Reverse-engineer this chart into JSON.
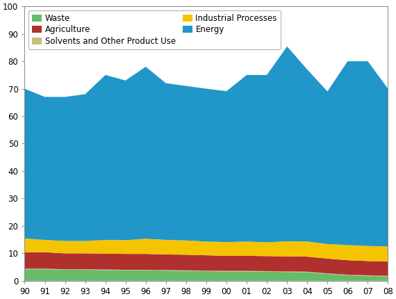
{
  "years": [
    1990,
    1991,
    1992,
    1993,
    1994,
    1995,
    1996,
    1997,
    1998,
    1999,
    2000,
    2001,
    2002,
    2003,
    2004,
    2005,
    2006,
    2007,
    2008
  ],
  "waste": [
    4.2,
    4.2,
    4.0,
    4.0,
    3.9,
    3.8,
    3.8,
    3.7,
    3.6,
    3.5,
    3.4,
    3.4,
    3.3,
    3.2,
    3.1,
    2.5,
    2.0,
    1.8,
    1.6
  ],
  "solvents": [
    0.2,
    0.2,
    0.2,
    0.2,
    0.2,
    0.2,
    0.2,
    0.2,
    0.2,
    0.2,
    0.2,
    0.2,
    0.2,
    0.2,
    0.2,
    0.2,
    0.2,
    0.2,
    0.2
  ],
  "agriculture": [
    6.0,
    6.0,
    5.8,
    5.8,
    5.8,
    5.8,
    5.8,
    5.7,
    5.7,
    5.6,
    5.5,
    5.5,
    5.5,
    5.5,
    5.5,
    5.4,
    5.3,
    5.2,
    5.2
  ],
  "industrial": [
    5.0,
    4.5,
    4.5,
    4.5,
    5.0,
    5.0,
    5.5,
    5.3,
    5.2,
    5.0,
    5.0,
    5.2,
    5.0,
    5.5,
    5.5,
    5.3,
    5.5,
    5.5,
    5.5
  ],
  "energy": [
    54.6,
    52.1,
    52.5,
    53.5,
    60.1,
    58.2,
    62.7,
    57.1,
    56.3,
    55.7,
    55.0,
    60.7,
    61.0,
    71.0,
    62.7,
    55.6,
    67.0,
    67.3,
    57.5
  ],
  "waste_color": "#66bb6a",
  "solvents_color": "#c8be78",
  "agriculture_color": "#b03030",
  "industrial_color": "#f5c400",
  "energy_color": "#2196c8",
  "ylim": [
    0,
    100
  ],
  "xlim_min": 1990,
  "xlim_max": 2008,
  "legend_order_labels": [
    "Waste",
    "Agriculture",
    "Solvents and Other Product Use",
    "Industrial Processes",
    "Energy"
  ],
  "legend_order_indices": [
    0,
    2,
    1,
    3,
    4
  ],
  "bg_color": "#ffffff",
  "tick_fontsize": 8.5,
  "legend_fontsize": 8.5
}
